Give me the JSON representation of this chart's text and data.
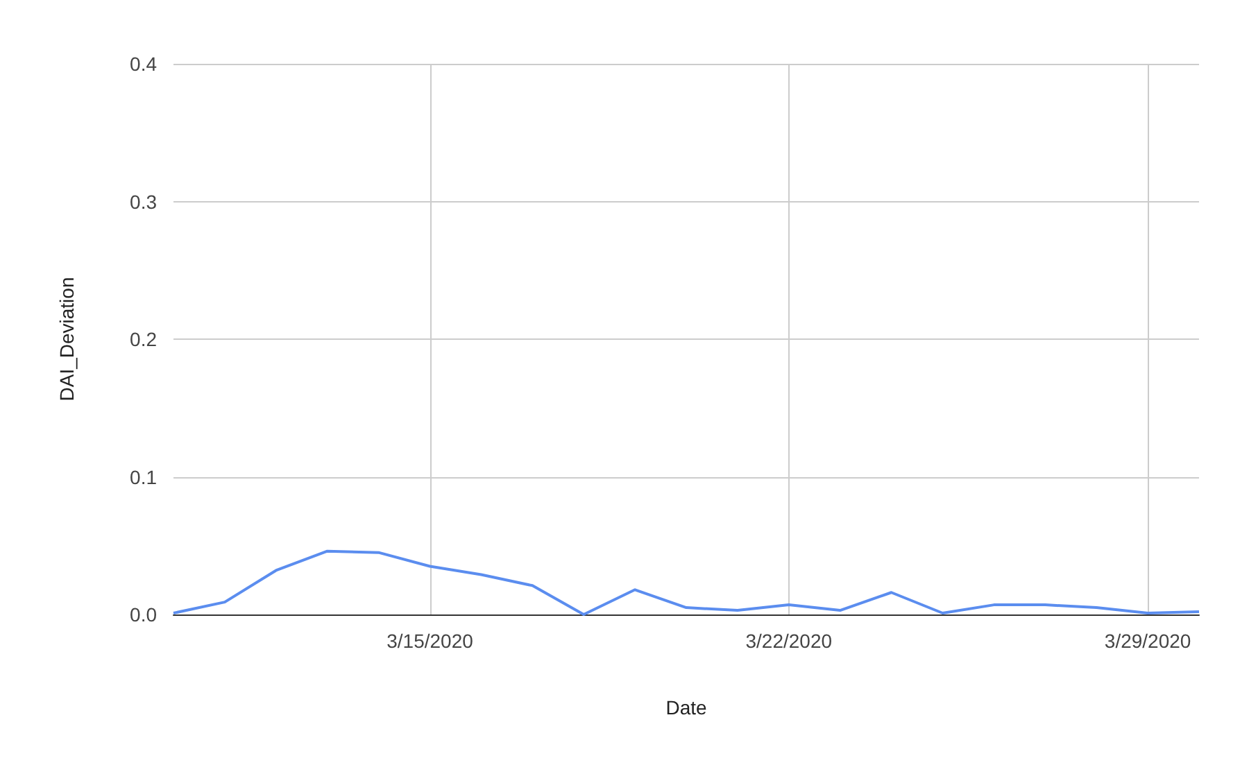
{
  "chart_data": {
    "type": "line",
    "xlabel": "Date",
    "ylabel": "DAI_Deviation",
    "x": [
      "2020-03-10",
      "2020-03-11",
      "2020-03-12",
      "2020-03-13",
      "2020-03-14",
      "2020-03-15",
      "2020-03-16",
      "2020-03-17",
      "2020-03-18",
      "2020-03-19",
      "2020-03-20",
      "2020-03-21",
      "2020-03-22",
      "2020-03-23",
      "2020-03-24",
      "2020-03-25",
      "2020-03-26",
      "2020-03-27",
      "2020-03-28",
      "2020-03-29",
      "2020-03-30"
    ],
    "series": [
      {
        "color": "#5b8def",
        "values": [
          0.001,
          0.009,
          0.032,
          0.046,
          0.045,
          0.035,
          0.029,
          0.021,
          0,
          0.018,
          0.005,
          0.003,
          0.007,
          0.003,
          0.016,
          0.001,
          0.007,
          0.007,
          0.005,
          0.001,
          0.002
        ]
      }
    ],
    "xlim": [
      "2020-03-10",
      "2020-03-30"
    ],
    "xticks": [
      {
        "value": "2020-03-15",
        "label": "3/15/2020"
      },
      {
        "value": "2020-03-22",
        "label": "3/22/2020"
      },
      {
        "value": "2020-03-29",
        "label": "3/29/2020"
      }
    ],
    "ylim": [
      0,
      0.4
    ],
    "yticks": [
      {
        "value": 0,
        "label": "0.0"
      },
      {
        "value": 0.1,
        "label": "0.1"
      },
      {
        "value": 0.2,
        "label": "0.2"
      },
      {
        "value": 0.3,
        "label": "0.3"
      },
      {
        "value": 0.4,
        "label": "0.4"
      }
    ],
    "grid": true,
    "marker": "none",
    "line_style": "solid"
  }
}
